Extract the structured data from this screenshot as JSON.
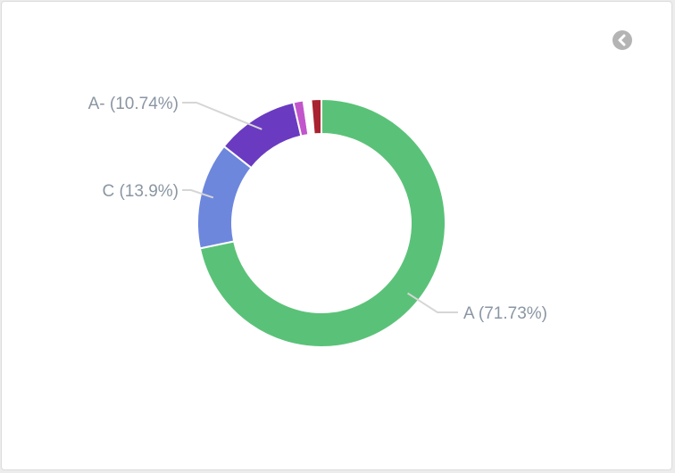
{
  "colors": {
    "background": "#ffffff",
    "label_text": "#8a96a3",
    "leader_line": "#d6d6d6",
    "back_button": "#b4b4b4"
  },
  "controls": {
    "back_icon": "chevron-left-icon"
  },
  "chart_data": {
    "type": "pie",
    "variant": "donut",
    "title": "",
    "legend": "none",
    "slices": [
      {
        "name": "A",
        "label": "A (71.73%)",
        "value": 71.73,
        "color": "#5ac278"
      },
      {
        "name": "C",
        "label": "C (13.9%)",
        "value": 13.9,
        "color": "#6d87dd"
      },
      {
        "name": "A-",
        "label": "A- (10.74%)",
        "value": 10.74,
        "color": "#6a3bc0"
      },
      {
        "name": "",
        "label": "",
        "value": 1.3,
        "color": "#c255cc"
      },
      {
        "name": "",
        "label": "",
        "value": 1.0,
        "color": "#ffffff"
      },
      {
        "name": "",
        "label": "",
        "value": 1.33,
        "color": "#a8232f"
      }
    ]
  }
}
